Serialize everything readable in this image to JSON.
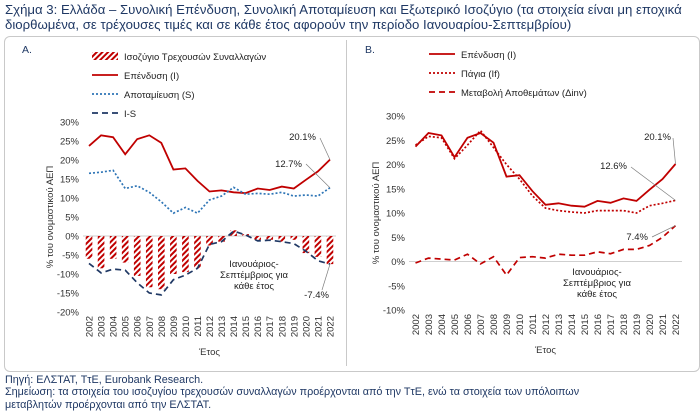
{
  "title": "Σχήμα 3: Ελλάδα – Συνολική Επένδυση, Συνολική Αποταμίευση και Εξωτερικό Ισοζύγιο (τα στοιχεία είναι μη εποχικά διορθωμένα, σε τρέχουσες τιμές και σε κάθε έτος αφορούν την περίοδο Ιανουαρίου-Σεπτεμβρίου)",
  "source": "Πηγή: ΕΛΣΤΑΤ, ΤτΕ, Eurobank Research.",
  "note_line1": "Σημείωση: τα στοιχεία του ισοζυγίου τρεχουσών συναλλαγών προέρχονται από την ΤτΕ, ενώ τα στοιχεία των υπόλοιπων",
  "note_line2": "μεταβλητών προέρχονται από την ΕΛΣΤΑΤ.",
  "colors": {
    "red": "#c00000",
    "blue": "#2e75b6",
    "navy": "#1f3864",
    "grid": "#d9d9d9"
  },
  "chart_data": [
    {
      "panel": "A.",
      "type": "bar",
      "ylabel": "% του ονομαστικού ΑΕΠ",
      "xlabel": "Έτος",
      "ylim": [
        -20,
        30
      ],
      "yticks": [
        -20,
        -15,
        -10,
        -5,
        0,
        5,
        10,
        15,
        20,
        25,
        30
      ],
      "ytick_labels": [
        "-20%",
        "-15%",
        "-10%",
        "-5%",
        "0%",
        "5%",
        "10%",
        "15%",
        "20%",
        "25%",
        "30%"
      ],
      "grid": false,
      "legend_position": "top",
      "categories": [
        "2002",
        "2003",
        "2004",
        "2005",
        "2006",
        "2007",
        "2008",
        "2009",
        "2010",
        "2011",
        "2012",
        "2013",
        "2014",
        "2015",
        "2016",
        "2017",
        "2018",
        "2019",
        "2020",
        "2021",
        "2022"
      ],
      "series": [
        {
          "name": "Ισοζύγιο Τρεχουσών Συναλλαγών",
          "style": "bar-hatched",
          "color": "#c00000",
          "values": [
            -6.0,
            -8.5,
            -6.0,
            -7.0,
            -10.5,
            -13.5,
            -14.0,
            -10.0,
            -9.5,
            -8.5,
            -2.5,
            -1.5,
            1.5,
            0.5,
            -1.0,
            -1.0,
            -1.5,
            -1.0,
            -4.5,
            -5.5,
            -7.4
          ]
        },
        {
          "name": "Επένδυση (I)",
          "style": "solid",
          "color": "#c00000",
          "values": [
            23.7,
            26.5,
            26.0,
            21.5,
            25.5,
            26.5,
            24.5,
            17.5,
            17.8,
            14.5,
            11.7,
            12.0,
            11.5,
            11.3,
            12.5,
            12.1,
            13.0,
            12.5,
            14.8,
            17.0,
            20.1
          ]
        },
        {
          "name": "Αποταμίευση (S)",
          "style": "dotted",
          "color": "#2e75b6",
          "values": [
            16.5,
            16.8,
            17.3,
            12.5,
            13.2,
            11.5,
            9.0,
            6.0,
            7.5,
            6.0,
            9.5,
            10.5,
            12.8,
            11.0,
            11.2,
            11.0,
            11.5,
            10.5,
            10.8,
            10.5,
            12.7
          ]
        },
        {
          "name": "I-S",
          "style": "dashed",
          "color": "#1f3864",
          "values": [
            -7.2,
            -9.7,
            -8.7,
            -9.0,
            -12.3,
            -15.0,
            -15.5,
            -11.5,
            -10.3,
            -8.5,
            -2.2,
            -1.5,
            1.3,
            0.3,
            -1.3,
            -1.1,
            -1.5,
            -2.0,
            -4.0,
            -6.5,
            -7.4
          ]
        }
      ],
      "annotations": [
        {
          "text": "20.1%",
          "x": "2022",
          "y": 20.1
        },
        {
          "text": "12.7%",
          "x": "2022",
          "y": 12.7
        },
        {
          "text": "-7.4%",
          "x": "2022",
          "y": -7.4
        }
      ],
      "period_note_line1": "Ιανουάριος-",
      "period_note_line2": "Σεπτέμβριος για",
      "period_note_line3": "κάθε έτος"
    },
    {
      "panel": "B.",
      "type": "line",
      "ylabel": "% του ονομαστικού ΑΕΠ",
      "xlabel": "Έτος",
      "ylim": [
        -10,
        30
      ],
      "yticks": [
        -10,
        -5,
        0,
        5,
        10,
        15,
        20,
        25,
        30
      ],
      "ytick_labels": [
        "-10%",
        "-5%",
        "0%",
        "5%",
        "10%",
        "15%",
        "20%",
        "25%",
        "30%"
      ],
      "grid": false,
      "legend_position": "top",
      "categories": [
        "2002",
        "2003",
        "2004",
        "2005",
        "2006",
        "2007",
        "2008",
        "2009",
        "2010",
        "2011",
        "2012",
        "2013",
        "2014",
        "2015",
        "2016",
        "2017",
        "2018",
        "2019",
        "2020",
        "2021",
        "2022"
      ],
      "series": [
        {
          "name": "Επένδυση (I)",
          "style": "solid",
          "color": "#c00000",
          "values": [
            23.7,
            26.5,
            26.0,
            21.5,
            25.5,
            26.5,
            24.5,
            17.5,
            17.8,
            14.5,
            11.7,
            12.0,
            11.5,
            11.3,
            12.5,
            12.1,
            13.0,
            12.5,
            14.8,
            17.0,
            20.1
          ]
        },
        {
          "name": "Πάγια (If)",
          "style": "dotted",
          "color": "#c00000",
          "values": [
            24.0,
            25.8,
            25.5,
            21.2,
            24.0,
            27.0,
            23.5,
            20.0,
            17.0,
            13.5,
            11.0,
            10.5,
            10.2,
            10.0,
            10.5,
            10.5,
            10.5,
            10.0,
            11.5,
            12.0,
            12.6
          ]
        },
        {
          "name": "Μεταβολή Αποθεμάτων (Δinv)",
          "style": "dashed",
          "color": "#c00000",
          "values": [
            -0.3,
            0.7,
            0.5,
            0.3,
            1.5,
            -0.5,
            1.0,
            -2.8,
            0.8,
            1.0,
            0.7,
            1.5,
            1.3,
            1.3,
            2.0,
            1.6,
            2.5,
            2.5,
            3.3,
            5.0,
            7.4
          ]
        }
      ],
      "annotations": [
        {
          "text": "20.1%",
          "x": "2022",
          "y": 20.1
        },
        {
          "text": "12.6%",
          "x": "2022",
          "y": 12.6
        },
        {
          "text": "7.4%",
          "x": "2022",
          "y": 7.4
        }
      ],
      "period_note_line1": "Ιανουάριος-",
      "period_note_line2": "Σεπτέμβριος για",
      "period_note_line3": "κάθε έτος"
    }
  ]
}
